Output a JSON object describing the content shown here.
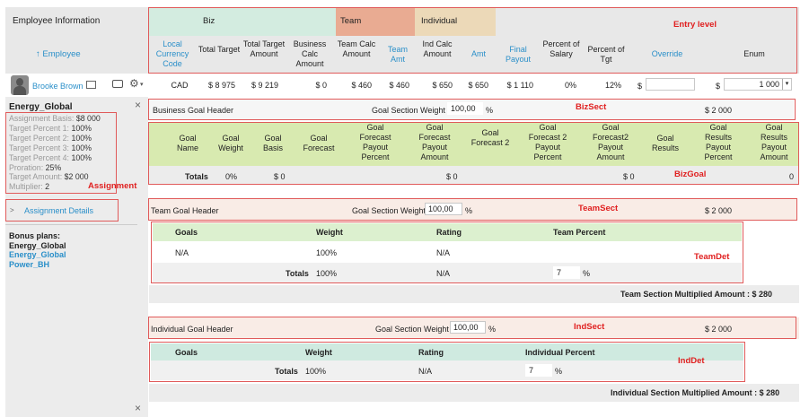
{
  "header": {
    "employee_info": "Employee Information",
    "employee_sort": "↑ Employee",
    "entry_level_label": "Entry level",
    "groups": {
      "biz": "Biz",
      "team": "Team",
      "individual": "Individual"
    },
    "columns": [
      "Local Currency Code",
      "Total Target",
      "Total Target Amount",
      "Business Calc Amount",
      "Team Calc Amount",
      "Team Amt",
      "Ind Calc Amount",
      "Amt",
      "Final Payout",
      "Percent of Salary",
      "Percent of Tgt",
      "Override",
      "Enum"
    ]
  },
  "employee_row": {
    "name": "Brooke Brown",
    "currency": "CAD",
    "total_target": "$ 8 975",
    "total_target_amount": "$ 9 219",
    "business_calc": "$ 0",
    "team_calc": "$ 460",
    "team_amt": "$ 460",
    "ind_calc": "$ 650",
    "amt": "$ 650",
    "final_payout": "$ 1 110",
    "pct_salary": "0%",
    "pct_tgt": "12%",
    "override_prefix": "$",
    "override_value": "",
    "enum_prefix": "$",
    "enum_value": "1 000"
  },
  "sidebar": {
    "plan_title": "Energy_Global",
    "assignment_label": "Assignment",
    "fields": [
      {
        "k": "Assignment Basis:",
        "v": "$8 000"
      },
      {
        "k": "Target Percent 1:",
        "v": "100%"
      },
      {
        "k": "Target Percent 2:",
        "v": "100%"
      },
      {
        "k": "Target Percent 3:",
        "v": "100%"
      },
      {
        "k": "Target Percent 4:",
        "v": "100%"
      },
      {
        "k": "Proration:",
        "v": "25%"
      },
      {
        "k": "Target Amount:",
        "v": "$2 000"
      },
      {
        "k": "Multiplier:",
        "v": "2"
      }
    ],
    "details_link": "Assignment Details",
    "bonus_plans_label": "Bonus plans:",
    "bonus_plans": [
      "Energy_Global",
      "Energy_Global",
      "Power_BH"
    ]
  },
  "biz_section": {
    "header": "Business Goal Header",
    "weight_label": "Goal Section Weight",
    "weight_value": "100,00",
    "pct": "%",
    "label": "BizSect",
    "amount": "$ 2 000"
  },
  "biz_goal": {
    "label": "BizGoal",
    "columns": [
      "Goal Name",
      "Goal Weight",
      "Goal Basis",
      "Goal Forecast",
      "Goal Forecast Payout Percent",
      "Goal Forecast Payout Amount",
      "Goal Forecast 2",
      "Goal Forecast 2 Payout Percent",
      "Goal Forecast2 Payout Amount",
      "Goal Results",
      "Goal Results Payout Percent",
      "Goal Results Payout Amount"
    ],
    "totals": {
      "label": "Totals",
      "weight": "0%",
      "basis": "$ 0",
      "fpa": "$ 0",
      "f2pa": "$ 0",
      "rpa": "0"
    }
  },
  "team_section": {
    "header": "Team Goal Header",
    "weight_label": "Goal Section Weight",
    "weight_value": "100,00",
    "pct": "%",
    "label": "TeamSect",
    "amount": "$ 2 000"
  },
  "team_det": {
    "label": "TeamDet",
    "columns": [
      "Goals",
      "Weight",
      "Rating",
      "Team Percent"
    ],
    "row": {
      "goals": "N/A",
      "weight": "100%",
      "rating": "N/A"
    },
    "totals": {
      "label": "Totals",
      "weight": "100%",
      "rating": "N/A",
      "percent": "7",
      "pct": "%"
    },
    "multiplied": "Team Section Multiplied Amount : $ 280"
  },
  "ind_section": {
    "header": "Individual Goal Header",
    "weight_label": "Goal Section Weight",
    "weight_value": "100,00",
    "pct": "%",
    "label": "IndSect",
    "amount": "$ 2 000"
  },
  "ind_det": {
    "label": "IndDet",
    "columns": [
      "Goals",
      "Weight",
      "Rating",
      "Individual Percent"
    ],
    "totals": {
      "label": "Totals",
      "weight": "100%",
      "rating": "N/A",
      "percent": "7",
      "pct": "%"
    },
    "multiplied": "Individual Section Multiplied Amount : $ 280"
  },
  "icons": {
    "close": "×",
    "sort_arrow": "↑",
    "gear": "⚙",
    "expand": ">"
  }
}
